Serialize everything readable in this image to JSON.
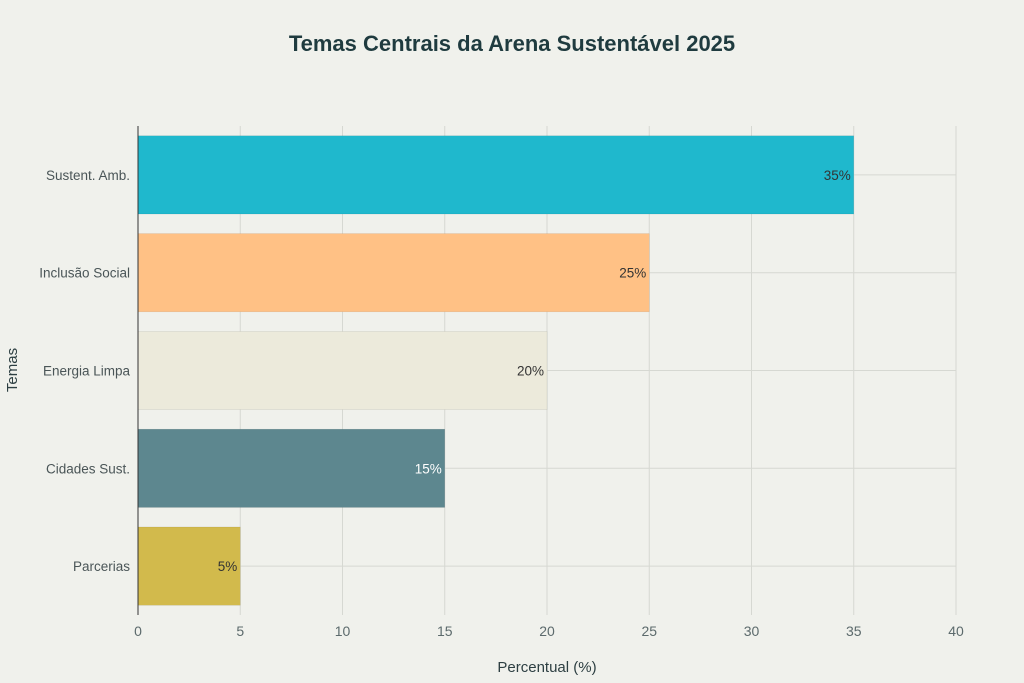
{
  "chart_data": {
    "type": "bar",
    "orientation": "horizontal",
    "title": "Temas Centrais da Arena Sustentável 2025",
    "xlabel": "Percentual (%)",
    "ylabel": "Temas",
    "xlim": [
      0,
      40
    ],
    "xticks": [
      0,
      5,
      10,
      15,
      20,
      25,
      30,
      35,
      40
    ],
    "grid": true,
    "categories": [
      "Sustent. Amb.",
      "Inclusão Social",
      "Energia Limpa",
      "Cidades Sust.",
      "Parcerias"
    ],
    "values": [
      35,
      25,
      20,
      15,
      5
    ],
    "data_labels": [
      "35%",
      "25%",
      "20%",
      "15%",
      "5%"
    ],
    "colors": [
      "#1fb8cd",
      "#ffc185",
      "#eceadb",
      "#5d878f",
      "#d2ba4c"
    ],
    "label_colors": [
      "#333333",
      "#333333",
      "#333333",
      "#ffffff",
      "#333333"
    ]
  }
}
